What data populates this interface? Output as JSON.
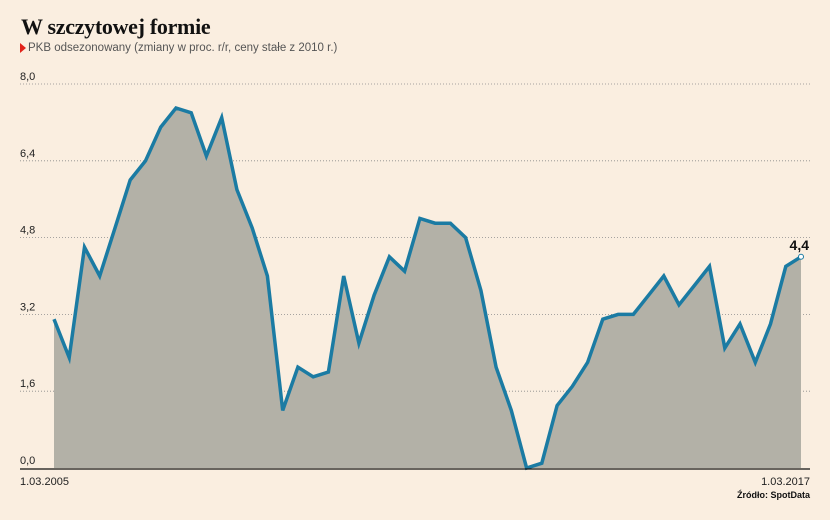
{
  "header": {
    "title": "W szczytowej formie",
    "subtitle": "PKB odsezonowany (zmiany w proc. r/r, ceny stałe z 2010 r.)"
  },
  "source": "Źródło: SpotData",
  "colors": {
    "background": "#faeee0",
    "line": "#1b7ba3",
    "area": "#b3b1a7",
    "accent": "#e2231a"
  },
  "chart_data": {
    "type": "area",
    "title": "W szczytowej formie",
    "subtitle": "PKB odsezonowany (zmiany w proc. r/r, ceny stałe z 2010 r.)",
    "xlabel": "",
    "ylabel": "",
    "x_start_label": "1.03.2005",
    "x_end_label": "1.03.2017",
    "ylim": [
      0,
      8
    ],
    "yticks": [
      "0,0",
      "1,6",
      "3,2",
      "4,8",
      "6,4",
      "8,0"
    ],
    "grid": true,
    "end_value_label": "4,4",
    "series": [
      {
        "values": [
          3.1,
          2.3,
          4.6,
          4.0,
          5.0,
          6.0,
          6.4,
          7.1,
          7.5,
          7.4,
          6.5,
          7.3,
          5.8,
          5.0,
          4.0,
          1.2,
          2.1,
          1.9,
          2.0,
          4.0,
          2.6,
          3.6,
          4.4,
          4.1,
          5.2,
          5.1,
          5.1,
          4.8,
          3.7,
          2.1,
          1.2,
          0.0,
          0.1,
          1.3,
          1.7,
          2.2,
          3.1,
          3.2,
          3.2,
          3.6,
          4.0,
          3.4,
          3.8,
          4.2,
          2.5,
          3.0,
          2.2,
          3.0,
          4.2,
          4.4
        ]
      }
    ]
  }
}
